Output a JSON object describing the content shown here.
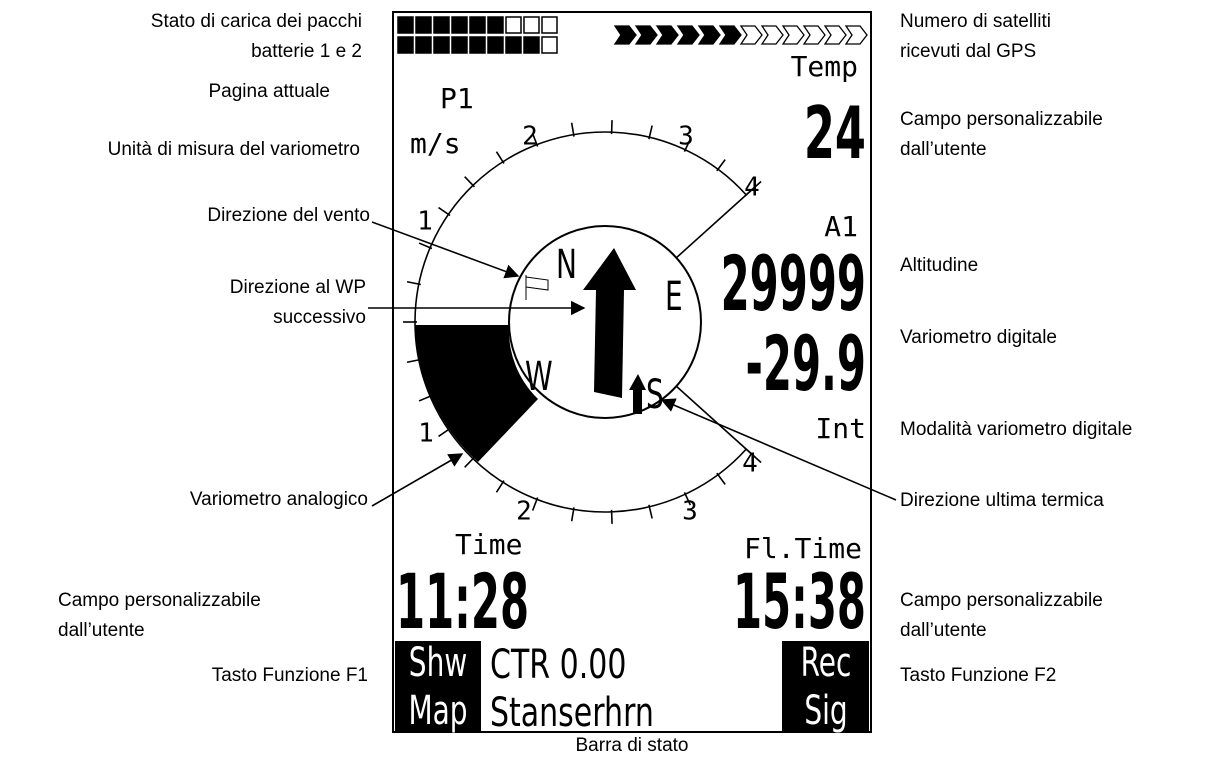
{
  "annotations": {
    "battery": [
      "Stato di carica dei pacchi",
      "batterie 1 e 2"
    ],
    "page": [
      "Pagina attuale"
    ],
    "vario_unit": [
      "Unità di misura del variometro"
    ],
    "wind": [
      "Direzione del vento"
    ],
    "wp": [
      "Direzione al WP",
      "successivo"
    ],
    "analog_vario": [
      "Variometro analogico"
    ],
    "field_left": [
      "Campo  personalizzabile",
      "dall’utente"
    ],
    "f1": [
      "Tasto Funzione F1"
    ],
    "satellites": [
      "Numero di satelliti",
      "ricevuti dal GPS"
    ],
    "field_top": [
      "Campo personalizzabile",
      "dall’utente"
    ],
    "altitude": [
      "Altitudine"
    ],
    "digital_vario": [
      "Variometro digitale"
    ],
    "vario_mode": [
      "Modalità variometro digitale"
    ],
    "thermal": [
      "Direzione ultima termica"
    ],
    "field_right": [
      "Campo personalizzabile",
      "dall’utente"
    ],
    "f2": [
      "Tasto Funzione F2"
    ],
    "status_bar": [
      "Barra di stato"
    ]
  },
  "display": {
    "page": "P1",
    "unit": "m/s",
    "field_top_label": "Temp",
    "field_top_value": "24",
    "altitude_label": "A1",
    "altitude": "29999",
    "vario": "-29.9",
    "vario_mode": "Int",
    "field_left_label": "Time",
    "field_left_value": "11:28",
    "field_right_label": "Fl.Time",
    "field_right_value": "15:38",
    "f1": [
      "Shw",
      "Map"
    ],
    "status": [
      "CTR 0.00",
      "Stanserhrn"
    ],
    "f2": [
      "Rec",
      "Sig"
    ],
    "compass": [
      "N",
      "E",
      "S",
      "W"
    ],
    "scale_top": [
      "1",
      "2",
      "3",
      "4"
    ],
    "scale_bottom": [
      "1",
      "2",
      "3",
      "4"
    ]
  }
}
